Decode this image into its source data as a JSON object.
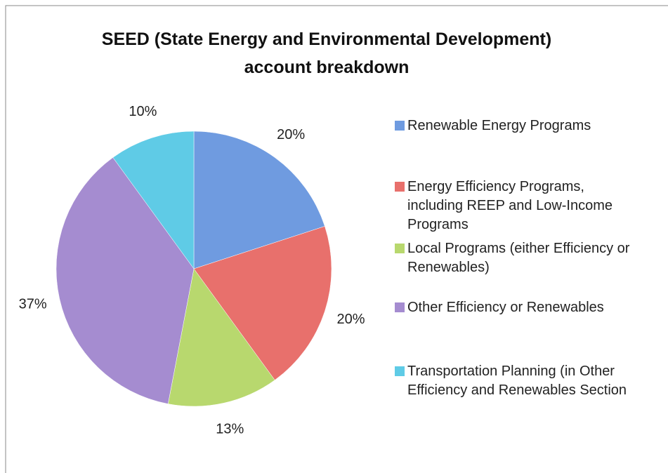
{
  "chart_data": {
    "type": "pie",
    "title": "SEED (State Energy and Environmental Development) account breakdown",
    "categories": [
      "Renewable Energy Programs",
      "Energy Efficiency Programs, including REEP and Low-Income Programs",
      "Local Programs (either Efficiency or Renewables)",
      "Other Efficiency or Renewables",
      "Transportation Planning (in Other Efficiency and Renewables Section"
    ],
    "values": [
      20,
      20,
      13,
      37,
      10
    ],
    "value_labels": [
      "20%",
      "20%",
      "13%",
      "37%",
      "10%"
    ],
    "colors": [
      "#6f9be0",
      "#e8706c",
      "#b8d86e",
      "#a58cd0",
      "#5fcbe6"
    ],
    "legend": "right"
  }
}
